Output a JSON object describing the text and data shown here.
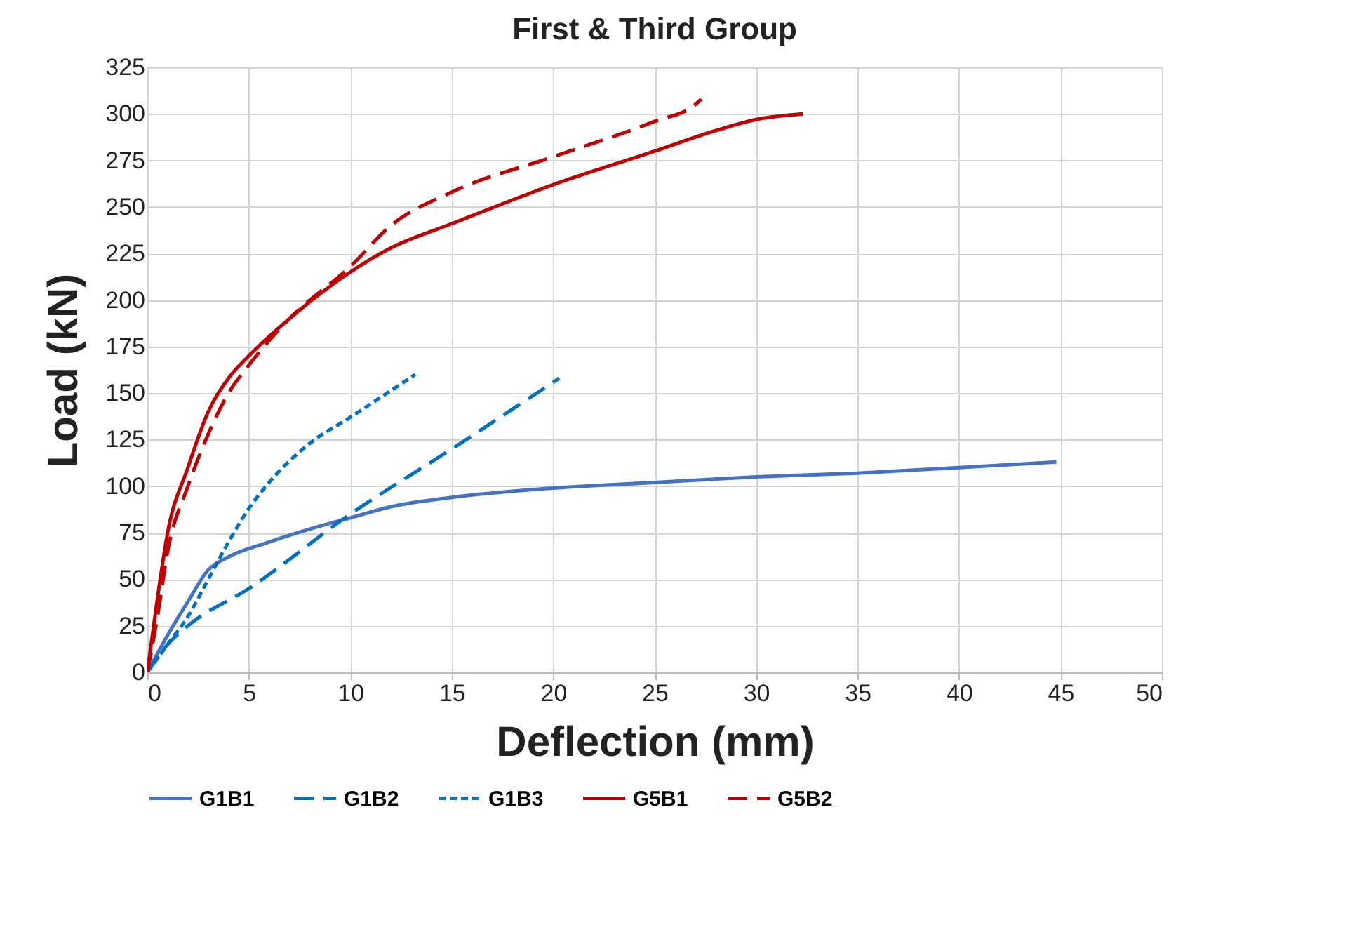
{
  "chart_data": {
    "type": "line",
    "title": "First & Third Group",
    "xlabel": "Deflection (mm)",
    "ylabel": "Load (kN)",
    "xlim": [
      0,
      50
    ],
    "xticks": [
      0,
      5,
      10,
      15,
      20,
      25,
      30,
      35,
      40,
      45,
      50
    ],
    "ylim": [
      0,
      325
    ],
    "yticks": [
      0,
      25,
      50,
      75,
      100,
      125,
      150,
      175,
      200,
      225,
      250,
      275,
      300,
      325
    ],
    "grid": true,
    "legend": "bottom",
    "marker": "none",
    "series": [
      {
        "name": "G1B1",
        "color": "#4472c4",
        "line_style": "solid",
        "x": [
          0,
          1,
          2,
          3,
          4,
          6,
          8,
          10,
          12,
          15,
          20,
          25,
          30,
          35,
          40,
          44.8
        ],
        "values": [
          0,
          20,
          38,
          55,
          62,
          70,
          77,
          83,
          89,
          94,
          99,
          102,
          105,
          107,
          110,
          113
        ]
      },
      {
        "name": "G1B2",
        "color": "#0070c0",
        "line_style": "dashed",
        "x": [
          0,
          1,
          2,
          5,
          10,
          15,
          20.3
        ],
        "values": [
          0,
          15,
          25,
          45,
          85,
          120,
          158
        ]
      },
      {
        "name": "G1B3",
        "color": "#0070c0",
        "line_style": "dotted",
        "x": [
          0,
          1,
          2,
          3,
          4,
          5,
          6,
          8,
          10,
          13.2
        ],
        "values": [
          0,
          15,
          30,
          50,
          70,
          88,
          102,
          123,
          137,
          160
        ]
      },
      {
        "name": "G5B1",
        "color": "#c00000",
        "line_style": "solid",
        "x": [
          0,
          0.5,
          1,
          2,
          3,
          4,
          5,
          7,
          10,
          12,
          15,
          20,
          25,
          28,
          30,
          32.3
        ],
        "values": [
          0,
          40,
          75,
          110,
          140,
          158,
          170,
          190,
          215,
          228,
          241,
          262,
          280,
          291,
          297,
          300
        ]
      },
      {
        "name": "G5B2",
        "color": "#c00000",
        "line_style": "dashed",
        "x": [
          0,
          0.5,
          1,
          2,
          3,
          4,
          5,
          7,
          10,
          12,
          15,
          20,
          25,
          27,
          27.3
        ],
        "values": [
          0,
          30,
          65,
          100,
          128,
          150,
          165,
          190,
          218,
          240,
          258,
          277,
          296,
          305,
          308
        ]
      }
    ]
  }
}
